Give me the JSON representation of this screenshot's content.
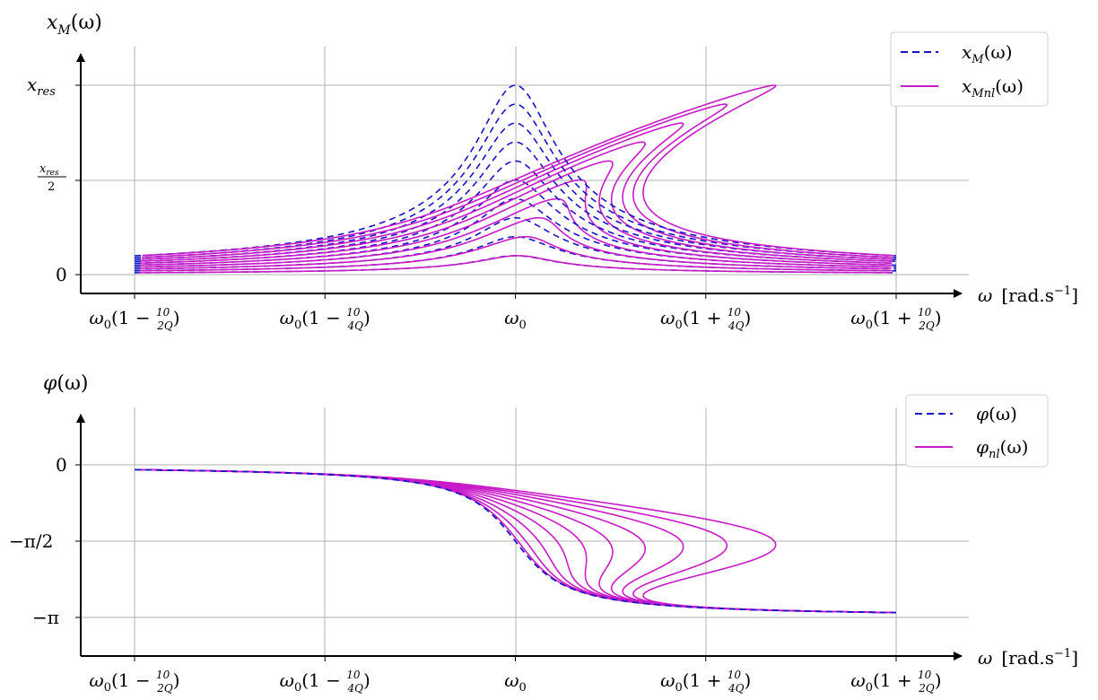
{
  "colors": {
    "linear": "#1515c8",
    "nonlinear": "#c81bc8",
    "grid": "#b0b0b0"
  },
  "xticks": [
    {
      "pre": "ω",
      "sub": "0",
      "mid": "(1 − ",
      "num": "10",
      "den": "2Q",
      "post": ")"
    },
    {
      "pre": "ω",
      "sub": "0",
      "mid": "(1 − ",
      "num": "10",
      "den": "4Q",
      "post": ")"
    },
    {
      "pre": "ω",
      "sub": "0",
      "mid": "",
      "num": "",
      "den": "",
      "post": ""
    },
    {
      "pre": "ω",
      "sub": "0",
      "mid": "(1 + ",
      "num": "10",
      "den": "4Q",
      "post": ")"
    },
    {
      "pre": "ω",
      "sub": "0",
      "mid": "(1 + ",
      "num": "10",
      "den": "2Q",
      "post": ")"
    }
  ],
  "top": {
    "ylabel": {
      "main": "x",
      "sub": "M",
      "arg": "(ω)"
    },
    "yticks": [
      {
        "main": "x",
        "sub": "res"
      },
      {
        "num_main": "x",
        "num_sub": "res",
        "den": "2"
      },
      {
        "label": "0"
      }
    ],
    "xlabel": {
      "symbol": "ω",
      "unit": "[rad.s",
      "exp": "−1",
      "close": "]"
    },
    "legend": [
      {
        "main": "x",
        "sub": "M",
        "arg": "(ω)"
      },
      {
        "main": "x",
        "sub": "Mnl",
        "arg": "(ω)"
      }
    ]
  },
  "bottom": {
    "ylabel": {
      "main": "φ",
      "arg": "(ω)"
    },
    "yticks": [
      "0",
      "−π/2",
      "−π"
    ],
    "xlabel": {
      "symbol": "ω",
      "unit": "[rad.s",
      "exp": "−1",
      "close": "]"
    },
    "legend": [
      {
        "main": "φ",
        "arg": "(ω)"
      },
      {
        "main": "φ",
        "sub": "nl",
        "arg": "(ω)"
      }
    ]
  },
  "chart_data": [
    {
      "type": "line",
      "xlabel": "ω [rad.s⁻¹]",
      "ylabel": "x_M(ω)",
      "xlim": [
        -1.4,
        1.2
      ],
      "ylim": [
        0,
        1.05
      ],
      "x_tick_values": [
        -1.0,
        -0.5,
        0.0,
        0.5,
        1.0
      ],
      "x_tick_labels": [
        "ω0(1 − 10/2Q)",
        "ω0(1 − 10/4Q)",
        "ω0",
        "ω0(1 + 10/4Q)",
        "ω0(1 + 10/2Q)"
      ],
      "y_tick_values": [
        0,
        0.5,
        1.0
      ],
      "y_tick_labels": [
        "0",
        "x_res/2",
        "x_res"
      ],
      "grid": true,
      "legend_position": "top-right",
      "peak_amplitudes": [
        0.1,
        0.2,
        0.3,
        0.4,
        0.5,
        0.6,
        0.7,
        0.8,
        0.9,
        1.0
      ],
      "series": [
        {
          "name": "x_M(ω)",
          "style": "dashed",
          "color": "#1515c8",
          "description": "linear resonance curves, peaks at ω0"
        },
        {
          "name": "x_Mnl(ω)",
          "style": "solid",
          "color": "#c81bc8",
          "description": "nonlinear (Duffing) curves, peaks bent toward higher ω"
        }
      ],
      "peak_frequency_shift_max": 0.68
    },
    {
      "type": "line",
      "xlabel": "ω [rad.s⁻¹]",
      "ylabel": "φ(ω)",
      "xlim": [
        -1.4,
        1.2
      ],
      "ylim": [
        -3.6,
        0.4
      ],
      "x_tick_values": [
        -1.0,
        -0.5,
        0.0,
        0.5,
        1.0
      ],
      "x_tick_labels": [
        "ω0(1 − 10/2Q)",
        "ω0(1 − 10/4Q)",
        "ω0",
        "ω0(1 + 10/4Q)",
        "ω0(1 + 10/2Q)"
      ],
      "y_tick_values": [
        0,
        -1.5708,
        -3.1416
      ],
      "y_tick_labels": [
        "0",
        "−π/2",
        "−π"
      ],
      "grid": true,
      "legend_position": "top-right",
      "series": [
        {
          "name": "φ(ω)",
          "style": "dashed",
          "color": "#1515c8",
          "description": "linear phase, −π/2 at ω0"
        },
        {
          "name": "φ_nl(ω)",
          "style": "solid",
          "color": "#c81bc8",
          "description": "nonlinear phase curves, transition bent toward higher ω"
        }
      ]
    }
  ]
}
